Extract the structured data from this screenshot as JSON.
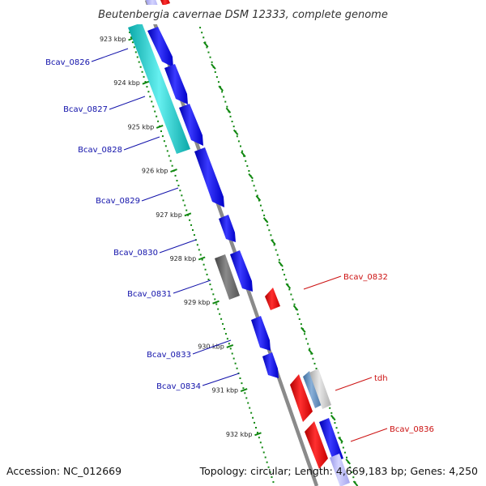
{
  "title": "Beutenbergia cavernae DSM 12333, complete genome",
  "footer": {
    "accession": "Accession: NC_012669",
    "summary": "Topology: circular; Length: 4,669,183 bp; Genes: 4,250"
  },
  "colors": {
    "backbone": "#8a8a8a",
    "tick": "#118811",
    "cds_forward": "#1a1aee",
    "cds_reverse": "#ee1111",
    "rna": "#22cccc",
    "pseudo": "#666666",
    "label_forward": "#1111aa",
    "label_reverse": "#cc1111"
  },
  "scale_labels": [
    {
      "kbp": 923,
      "label": "923 kbp"
    },
    {
      "kbp": 924,
      "label": "924 kbp"
    },
    {
      "kbp": 925,
      "label": "925 kbp"
    },
    {
      "kbp": 926,
      "label": "926 kbp"
    },
    {
      "kbp": 927,
      "label": "927 kbp"
    },
    {
      "kbp": 928,
      "label": "928 kbp"
    },
    {
      "kbp": 929,
      "label": "929 kbp"
    },
    {
      "kbp": 930,
      "label": "930 kbp"
    },
    {
      "kbp": 931,
      "label": "931 kbp"
    },
    {
      "kbp": 932,
      "label": "932 kbp"
    }
  ],
  "gene_labels": [
    {
      "name": "Bcav_0826",
      "strand": "forward"
    },
    {
      "name": "Bcav_0827",
      "strand": "forward"
    },
    {
      "name": "Bcav_0828",
      "strand": "forward"
    },
    {
      "name": "Bcav_0829",
      "strand": "forward"
    },
    {
      "name": "Bcav_0830",
      "strand": "forward"
    },
    {
      "name": "Bcav_0831",
      "strand": "forward"
    },
    {
      "name": "Bcav_0833",
      "strand": "forward"
    },
    {
      "name": "Bcav_0834",
      "strand": "forward"
    },
    {
      "name": "Bcav_0832",
      "strand": "reverse"
    },
    {
      "name": "tdh",
      "strand": "reverse"
    },
    {
      "name": "Bcav_0836",
      "strand": "reverse"
    }
  ]
}
